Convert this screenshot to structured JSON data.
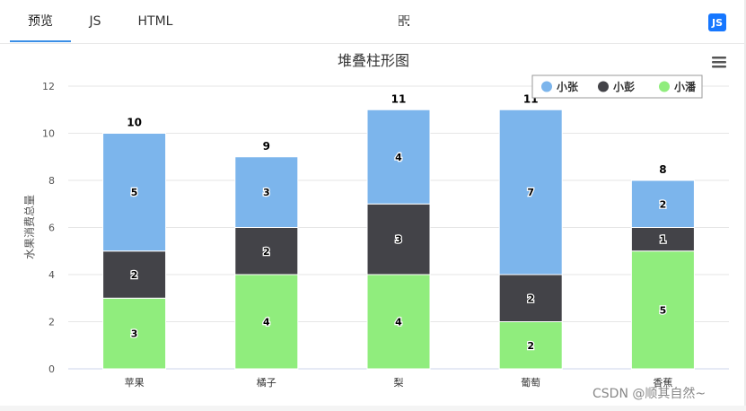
{
  "tabs": [
    {
      "label": "预览",
      "active": true
    },
    {
      "label": "JS",
      "active": false
    },
    {
      "label": "HTML",
      "active": false
    },
    {
      "label": "",
      "icon": "qr-code-icon",
      "active": false
    }
  ],
  "badge": {
    "label": "JS",
    "icon": "js-icon",
    "color": "#1677ff"
  },
  "menu": {
    "icon": "hamburger-menu-icon"
  },
  "watermark": "CSDN @顺其自然~",
  "chart_data": {
    "type": "bar",
    "stacked": true,
    "title": "堆叠柱形图",
    "xlabel": "",
    "ylabel": "水果消费总量",
    "ylim": [
      0,
      12
    ],
    "yticks": [
      0,
      2,
      4,
      6,
      8,
      10,
      12
    ],
    "categories": [
      "苹果",
      "橘子",
      "梨",
      "葡萄",
      "香蕉"
    ],
    "series": [
      {
        "name": "小张",
        "color": "#7cb5ec",
        "values": [
          5,
          3,
          4,
          7,
          2
        ]
      },
      {
        "name": "小彭",
        "color": "#434348",
        "values": [
          2,
          2,
          3,
          2,
          1
        ]
      },
      {
        "name": "小潘",
        "color": "#90ed7d",
        "values": [
          3,
          4,
          4,
          2,
          5
        ]
      }
    ],
    "totals": [
      10,
      9,
      11,
      11,
      8
    ],
    "legend": "top-right",
    "grid": true
  }
}
